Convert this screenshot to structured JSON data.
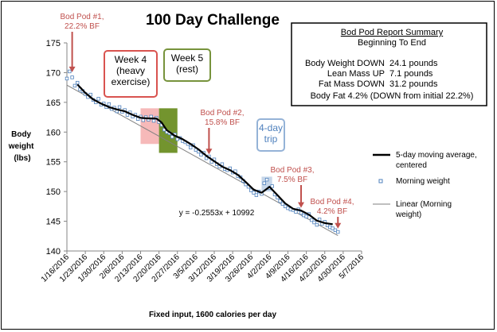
{
  "chart_data": {
    "type": "line",
    "title": "100 Day Challenge",
    "xlabel": "Fixed input, 1600 calories per day",
    "ylabel_lines": [
      "Body",
      "weight",
      "(lbs)"
    ],
    "ylim": [
      140,
      175
    ],
    "y_ticks": [
      140,
      145,
      150,
      155,
      160,
      165,
      170,
      175
    ],
    "x_ticks": [
      "1/16/2016",
      "1/23/2016",
      "1/30/2016",
      "2/6/2016",
      "2/13/2016",
      "2/20/2016",
      "2/27/2016",
      "3/5/2016",
      "3/12/2016",
      "3/19/2016",
      "3/26/2016",
      "4/2/2016",
      "4/9/2016",
      "4/16/2016",
      "4/23/2016",
      "4/30/2016",
      "5/7/2016"
    ],
    "xlim": [
      "2016-01-16",
      "2016-05-07"
    ],
    "grid": false,
    "legend_position": "right",
    "series": [
      {
        "name": "5-day moving average, centered",
        "color": "#000000",
        "style": "line",
        "points": [
          [
            "2016-01-20",
            168.0
          ],
          [
            "2016-01-23",
            166.6
          ],
          [
            "2016-01-26",
            165.5
          ],
          [
            "2016-01-29",
            164.8
          ],
          [
            "2016-02-01",
            164.2
          ],
          [
            "2016-02-04",
            163.8
          ],
          [
            "2016-02-07",
            163.5
          ],
          [
            "2016-02-10",
            162.9
          ],
          [
            "2016-02-13",
            162.4
          ],
          [
            "2016-02-16",
            162.3
          ],
          [
            "2016-02-19",
            162.3
          ],
          [
            "2016-02-21",
            161.6
          ],
          [
            "2016-02-23",
            160.3
          ],
          [
            "2016-02-26",
            159.4
          ],
          [
            "2016-02-29",
            158.8
          ],
          [
            "2016-03-03",
            158.0
          ],
          [
            "2016-03-06",
            157.1
          ],
          [
            "2016-03-09",
            156.0
          ],
          [
            "2016-03-12",
            155.1
          ],
          [
            "2016-03-15",
            154.2
          ],
          [
            "2016-03-18",
            153.6
          ],
          [
            "2016-03-21",
            152.8
          ],
          [
            "2016-03-24",
            151.6
          ],
          [
            "2016-03-27",
            150.3
          ],
          [
            "2016-03-30",
            149.8
          ],
          [
            "2016-04-02",
            150.8
          ],
          [
            "2016-04-05",
            149.4
          ],
          [
            "2016-04-08",
            148.0
          ],
          [
            "2016-04-11",
            147.1
          ],
          [
            "2016-04-14",
            146.8
          ],
          [
            "2016-04-17",
            146.1
          ],
          [
            "2016-04-20",
            145.1
          ],
          [
            "2016-04-23",
            144.7
          ],
          [
            "2016-04-26",
            144.5
          ]
        ]
      },
      {
        "name": "Morning weight",
        "color": "#4f81bd",
        "style": "marker",
        "points": [
          [
            "2016-01-16",
            169.0
          ],
          [
            "2016-01-17",
            170.2
          ],
          [
            "2016-01-18",
            169.2
          ],
          [
            "2016-01-19",
            167.8
          ],
          [
            "2016-01-20",
            168.3
          ],
          [
            "2016-01-21",
            167.2
          ],
          [
            "2016-01-22",
            166.9
          ],
          [
            "2016-01-23",
            166.4
          ],
          [
            "2016-01-24",
            165.9
          ],
          [
            "2016-01-25",
            166.3
          ],
          [
            "2016-01-26",
            165.4
          ],
          [
            "2016-01-27",
            165.0
          ],
          [
            "2016-01-28",
            165.6
          ],
          [
            "2016-01-29",
            164.6
          ],
          [
            "2016-01-30",
            164.8
          ],
          [
            "2016-01-31",
            164.2
          ],
          [
            "2016-02-01",
            164.7
          ],
          [
            "2016-02-02",
            163.9
          ],
          [
            "2016-02-03",
            164.1
          ],
          [
            "2016-02-04",
            163.5
          ],
          [
            "2016-02-05",
            164.2
          ],
          [
            "2016-02-06",
            163.4
          ],
          [
            "2016-02-07",
            163.7
          ],
          [
            "2016-02-08",
            162.9
          ],
          [
            "2016-02-09",
            163.3
          ],
          [
            "2016-02-10",
            162.6
          ],
          [
            "2016-02-11",
            162.9
          ],
          [
            "2016-02-12",
            162.2
          ],
          [
            "2016-02-13",
            162.6
          ],
          [
            "2016-02-14",
            162.0
          ],
          [
            "2016-02-15",
            162.5
          ],
          [
            "2016-02-16",
            162.1
          ],
          [
            "2016-02-17",
            162.6
          ],
          [
            "2016-02-18",
            161.9
          ],
          [
            "2016-02-19",
            162.4
          ],
          [
            "2016-02-20",
            161.7
          ],
          [
            "2016-02-21",
            161.2
          ],
          [
            "2016-02-22",
            160.4
          ],
          [
            "2016-02-23",
            160.0
          ],
          [
            "2016-02-24",
            159.8
          ],
          [
            "2016-02-25",
            159.2
          ],
          [
            "2016-02-26",
            159.6
          ],
          [
            "2016-02-27",
            158.8
          ],
          [
            "2016-02-28",
            159.0
          ],
          [
            "2016-02-29",
            158.5
          ],
          [
            "2016-03-01",
            158.3
          ],
          [
            "2016-03-02",
            158.0
          ],
          [
            "2016-03-03",
            157.4
          ],
          [
            "2016-03-04",
            157.8
          ],
          [
            "2016-03-05",
            157.0
          ],
          [
            "2016-03-06",
            156.7
          ],
          [
            "2016-03-07",
            156.2
          ],
          [
            "2016-03-08",
            156.5
          ],
          [
            "2016-03-09",
            155.6
          ],
          [
            "2016-03-10",
            155.9
          ],
          [
            "2016-03-11",
            155.0
          ],
          [
            "2016-03-12",
            155.4
          ],
          [
            "2016-03-13",
            154.6
          ],
          [
            "2016-03-14",
            154.2
          ],
          [
            "2016-03-15",
            154.6
          ],
          [
            "2016-03-16",
            153.8
          ],
          [
            "2016-03-17",
            153.6
          ],
          [
            "2016-03-18",
            153.9
          ],
          [
            "2016-03-19",
            153.2
          ],
          [
            "2016-03-20",
            153.4
          ],
          [
            "2016-03-21",
            152.6
          ],
          [
            "2016-03-22",
            152.4
          ],
          [
            "2016-03-23",
            151.8
          ],
          [
            "2016-03-24",
            151.2
          ],
          [
            "2016-03-25",
            150.8
          ],
          [
            "2016-03-26",
            150.2
          ],
          [
            "2016-03-27",
            149.8
          ],
          [
            "2016-03-28",
            149.4
          ],
          [
            "2016-03-29",
            150.0
          ],
          [
            "2016-03-30",
            149.6
          ],
          [
            "2016-03-31",
            151.4
          ],
          [
            "2016-04-01",
            152.0
          ],
          [
            "2016-04-02",
            150.6
          ],
          [
            "2016-04-03",
            150.9
          ],
          [
            "2016-04-04",
            149.5
          ],
          [
            "2016-04-05",
            149.0
          ],
          [
            "2016-04-06",
            148.4
          ],
          [
            "2016-04-07",
            147.9
          ],
          [
            "2016-04-08",
            147.5
          ],
          [
            "2016-04-09",
            147.2
          ],
          [
            "2016-04-10",
            147.0
          ],
          [
            "2016-04-11",
            146.9
          ],
          [
            "2016-04-12",
            146.6
          ],
          [
            "2016-04-13",
            147.0
          ],
          [
            "2016-04-14",
            146.4
          ],
          [
            "2016-04-15",
            146.0
          ],
          [
            "2016-04-16",
            145.8
          ],
          [
            "2016-04-17",
            146.2
          ],
          [
            "2016-04-18",
            145.2
          ],
          [
            "2016-04-19",
            144.8
          ],
          [
            "2016-04-20",
            144.4
          ],
          [
            "2016-04-21",
            145.3
          ],
          [
            "2016-04-22",
            144.6
          ],
          [
            "2016-04-23",
            144.9
          ],
          [
            "2016-04-24",
            144.3
          ],
          [
            "2016-04-25",
            144.0
          ],
          [
            "2016-04-26",
            143.8
          ],
          [
            "2016-04-27",
            143.5
          ],
          [
            "2016-04-28",
            143.2
          ]
        ]
      },
      {
        "name": "Linear (Morning weight)",
        "color": "#7f7f7f",
        "style": "trendline",
        "points": [
          [
            "2016-01-16",
            167.9
          ],
          [
            "2016-04-28",
            142.6
          ]
        ]
      }
    ],
    "trendline_equation": "y = -0.2553x + 10992",
    "bod_pods": [
      {
        "label": "Bod Pod #1,\n22.2% BF",
        "date": "2016-01-18",
        "value": 169.8
      },
      {
        "label": "Bod Pod #2,\n15.8% BF",
        "date": "2016-03-10",
        "value": 156.0
      },
      {
        "label": "Bod Pod #3,\n7.5% BF",
        "date": "2016-04-14",
        "value": 147.0
      },
      {
        "label": "Bod Pod #4,\n4.2% BF",
        "date": "2016-04-28",
        "value": 143.5
      }
    ],
    "callouts": [
      {
        "label": "Week 4\n(heavy\nexercise)",
        "color": "#e05a5a",
        "date_range": [
          "2016-02-13",
          "2016-02-20"
        ],
        "y_range": [
          158,
          164
        ]
      },
      {
        "label": "Week 5\n(rest)",
        "color": "#6a8f2a",
        "date_range": [
          "2016-02-20",
          "2016-02-27"
        ],
        "y_range": [
          156.5,
          164
        ]
      },
      {
        "label": "4-day\ntrip",
        "color": "#95b3d7",
        "date_range": [
          "2016-03-30",
          "2016-04-03"
        ],
        "y_range": [
          150,
          152.5
        ]
      }
    ],
    "summary": {
      "title": "Bod Pod Report Summary",
      "subtitle": "Beginning To End",
      "rows": [
        {
          "label": "Body Weight DOWN",
          "value": "24.1 pounds"
        },
        {
          "label": "Lean Mass UP",
          "value": "7.1 pounds"
        },
        {
          "label": "Fat Mass DOWN",
          "value": "31.2 pounds"
        }
      ],
      "footer": "Body Fat 4.2% (DOWN from initial 22.2%)"
    }
  }
}
